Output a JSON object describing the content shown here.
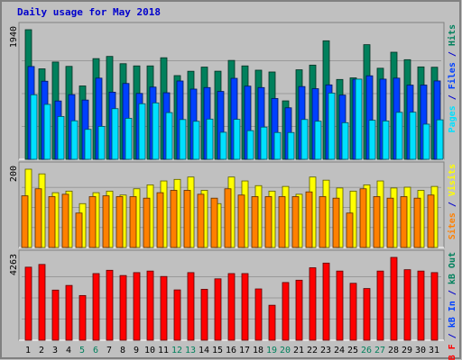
{
  "title": "Daily usage for May 2018",
  "colors": {
    "background": "#C0C0C0",
    "frame": "#999999",
    "title": "#0000CC",
    "hits": "#00805C",
    "files": "#0040FF",
    "pages": "#00E0FF",
    "visits": "#FFFF00",
    "sites": "#FF8000",
    "kbytes": "#FF0000",
    "weekday_label": "#000000",
    "weekend_label": "#00805C"
  },
  "chart_data": [
    {
      "type": "bar",
      "panel": "hits-files-pages",
      "ymax_label": "1940",
      "ylim": [
        0,
        1940
      ],
      "series": [
        {
          "name": "Hits",
          "color_key": "hits",
          "values": [
            1940,
            1354,
            1456,
            1391,
            1098,
            1507,
            1540,
            1431,
            1398,
            1398,
            1520,
            1253,
            1318,
            1380,
            1319,
            1480,
            1398,
            1334,
            1307,
            875,
            1340,
            1410,
            1774,
            1195,
            1219,
            1716,
            1363,
            1603,
            1491,
            1383,
            1378
          ]
        },
        {
          "name": "Files",
          "color_key": "files",
          "values": [
            1389,
            1169,
            873,
            968,
            887,
            1215,
            1005,
            1135,
            986,
            1081,
            996,
            1172,
            1051,
            1074,
            1016,
            1212,
            1095,
            1074,
            910,
            771,
            1089,
            1057,
            1114,
            961,
            1198,
            1250,
            1200,
            1215,
            1110,
            1111,
            1173
          ]
        },
        {
          "name": "Pages",
          "color_key": "pages",
          "values": [
            966,
            822,
            641,
            576,
            448,
            493,
            758,
            614,
            832,
            844,
            699,
            595,
            569,
            602,
            405,
            598,
            429,
            482,
            401,
            401,
            596,
            570,
            991,
            548,
            1200,
            584,
            574,
            703,
            705,
            526,
            591
          ]
        }
      ]
    },
    {
      "type": "bar",
      "panel": "visits-sites",
      "ymax_label": "200",
      "ylim": [
        0,
        200
      ],
      "series": [
        {
          "name": "Visits",
          "color_key": "visits",
          "values": [
            200,
            188,
            140,
            144,
            112,
            140,
            144,
            134,
            150,
            160,
            170,
            174,
            180,
            146,
            112,
            180,
            170,
            158,
            144,
            156,
            136,
            180,
            172,
            152,
            144,
            160,
            170,
            152,
            154,
            146,
            156
          ]
        },
        {
          "name": "Sites",
          "color_key": "sites",
          "values": [
            132,
            150,
            130,
            136,
            88,
            130,
            132,
            130,
            130,
            126,
            140,
            146,
            146,
            136,
            126,
            150,
            134,
            130,
            130,
            130,
            130,
            142,
            130,
            126,
            88,
            150,
            130,
            126,
            130,
            126,
            134
          ]
        }
      ]
    },
    {
      "type": "bar",
      "panel": "kbytes",
      "ymax_label": "4263",
      "ylim": [
        0,
        4263
      ],
      "series": [
        {
          "name": "KBytes",
          "color_key": "kbytes",
          "values": [
            3760,
            3900,
            2580,
            2820,
            2300,
            3430,
            3600,
            3330,
            3480,
            3560,
            3280,
            2590,
            3480,
            2620,
            3160,
            3430,
            3430,
            2640,
            1800,
            2970,
            3090,
            3730,
            3970,
            3560,
            2930,
            2660,
            3560,
            4263,
            3630,
            3560,
            3480
          ]
        }
      ]
    }
  ],
  "x_days": [
    "1",
    "2",
    "3",
    "4",
    "5",
    "6",
    "7",
    "8",
    "9",
    "10",
    "11",
    "12",
    "13",
    "14",
    "15",
    "16",
    "17",
    "18",
    "19",
    "20",
    "21",
    "22",
    "23",
    "24",
    "25",
    "26",
    "27",
    "28",
    "29",
    "30",
    "31"
  ],
  "weekend_days": [
    "5",
    "6",
    "12",
    "13",
    "19",
    "20",
    "26",
    "27"
  ],
  "legend_top": [
    {
      "text": "Pages",
      "color_key": "pages"
    },
    {
      "text": " / ",
      "color_key": "title"
    },
    {
      "text": "Files",
      "color_key": "files"
    },
    {
      "text": " / ",
      "color_key": "title"
    },
    {
      "text": "Hits",
      "color_key": "hits"
    }
  ],
  "legend_mid": [
    {
      "text": "Sites",
      "color_key": "sites"
    },
    {
      "text": " / ",
      "color_key": "title"
    },
    {
      "text": "Visits",
      "color_key": "visits"
    }
  ],
  "legend_bottom": [
    {
      "text": "kB F",
      "color_key": "kbytes"
    },
    {
      "text": " / ",
      "color_key": "title"
    },
    {
      "text": "kB In",
      "color_key": "files"
    },
    {
      "text": " / ",
      "color_key": "title"
    },
    {
      "text": "kB Out",
      "color_key": "hits"
    }
  ]
}
